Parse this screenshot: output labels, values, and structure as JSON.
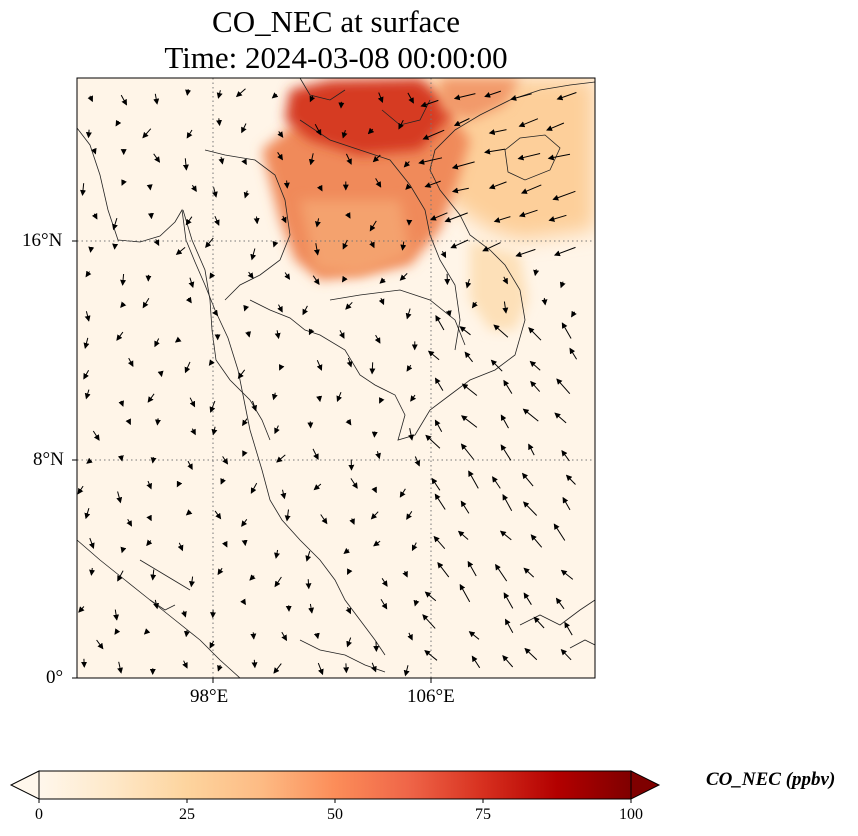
{
  "title": {
    "line1": "CO_NEC at surface",
    "line2": "Time: 2024-03-08 00:00:00"
  },
  "map": {
    "lon_range": [
      93,
      112
    ],
    "lat_range": [
      0,
      22
    ],
    "x_ticks": [
      {
        "value": 98,
        "label": "98°E"
      },
      {
        "value": 106,
        "label": "106°E"
      }
    ],
    "y_ticks": [
      {
        "value": 16,
        "label": "16°N"
      },
      {
        "value": 8,
        "label": "8°N"
      },
      {
        "value": 0,
        "label": "0°"
      }
    ],
    "gridlines": "dotted"
  },
  "colorbar": {
    "label": "CO_NEC (ppbv)",
    "min": 0,
    "max": 100,
    "ticks": [
      {
        "value": 0,
        "label": "0"
      },
      {
        "value": 25,
        "label": "25"
      },
      {
        "value": 50,
        "label": "50"
      },
      {
        "value": 75,
        "label": "75"
      },
      {
        "value": 100,
        "label": "100"
      }
    ],
    "colormap": "OrRd",
    "extend": "both",
    "stops": [
      "#fff7ec",
      "#fee8c8",
      "#fdd49e",
      "#fdbb84",
      "#fc8d59",
      "#ef6548",
      "#d7301f",
      "#b30000",
      "#7f0000"
    ]
  },
  "colors": {
    "background_field": "#fff5e8"
  }
}
